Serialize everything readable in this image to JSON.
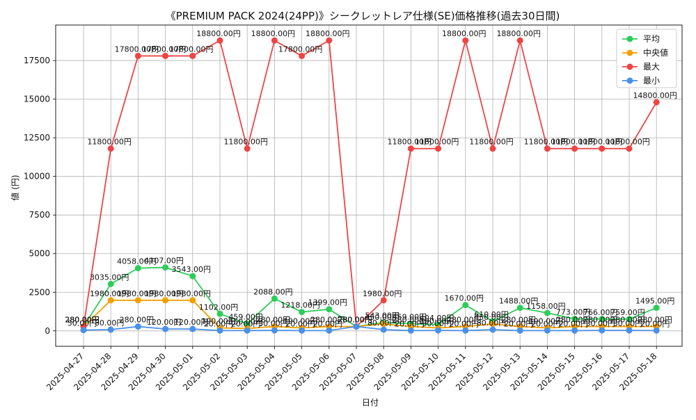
{
  "chart_data": {
    "type": "line",
    "title": "《PREMIUM PACK 2024(24PP)》シークレットレア仕様(SE)価格推移(過去30日間)",
    "xlabel": "日付",
    "ylabel": "値 (円)",
    "ylim": [
      -1000,
      19800
    ],
    "yticks": [
      0,
      2500,
      5000,
      7500,
      10000,
      12500,
      15000,
      17500
    ],
    "grid": true,
    "legend_position": "top-right",
    "categories": [
      "2025-04-27",
      "2025-04-28",
      "2025-04-29",
      "2025-04-30",
      "2025-05-01",
      "2025-05-02",
      "2025-05-03",
      "2025-05-04",
      "2025-05-05",
      "2025-05-06",
      "2025-05-07",
      "2025-05-08",
      "2025-05-09",
      "2025-05-10",
      "2025-05-11",
      "2025-05-12",
      "2025-05-13",
      "2025-05-14",
      "2025-05-15",
      "2025-05-16",
      "2025-05-17",
      "2025-05-18"
    ],
    "series": [
      {
        "name": "平均",
        "color": "#2ecc5a",
        "values": [
          280,
          3035,
          4058,
          4107,
          3543,
          1102,
          459,
          2088,
          1218,
          1399,
          280,
          543,
          459,
          404,
          1670,
          610,
          1488,
          1158,
          773,
          766,
          759,
          1495
        ]
      },
      {
        "name": "中央値",
        "color": "#f5a000",
        "values": [
          280,
          1980,
          1980,
          1980,
          1980,
          190,
          150,
          280,
          190,
          280,
          280,
          450,
          280,
          190,
          280,
          450,
          280,
          190,
          280,
          280,
          280,
          280
        ]
      },
      {
        "name": "最大",
        "color": "#ee4444",
        "values": [
          280,
          11800,
          17800,
          17800,
          17800,
          18800,
          11800,
          18800,
          17800,
          18800,
          280,
          1980,
          11800,
          11800,
          18800,
          11800,
          18800,
          11800,
          11800,
          11800,
          11800,
          14800
        ]
      },
      {
        "name": "最小",
        "color": "#4a90e8",
        "values": [
          50,
          80,
          280,
          120,
          120,
          20,
          20,
          30,
          20,
          20,
          280,
          80,
          20,
          30,
          20,
          80,
          20,
          20,
          20,
          30,
          30,
          20
        ]
      }
    ],
    "value_suffix": ".00円"
  }
}
